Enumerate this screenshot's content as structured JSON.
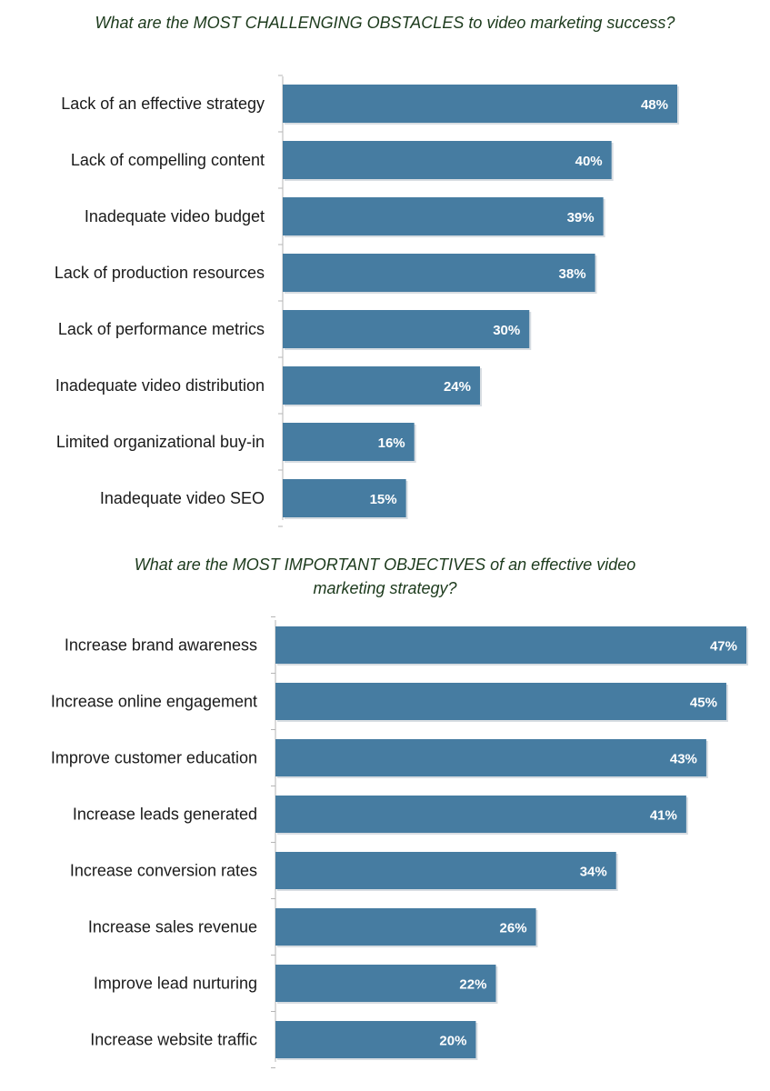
{
  "chart_data": [
    {
      "type": "bar",
      "orientation": "horizontal",
      "title": "What are the MOST CHALLENGING OBSTACLES to video marketing success?",
      "categories": [
        "Lack of an effective strategy",
        "Lack of compelling content",
        "Inadequate video budget",
        "Lack of production resources",
        "Lack of performance metrics",
        "Inadequate video distribution",
        "Limited organizational buy-in",
        "Inadequate video SEO"
      ],
      "values": [
        48,
        40,
        39,
        38,
        30,
        24,
        16,
        15
      ],
      "value_labels": [
        "48%",
        "40%",
        "39%",
        "38%",
        "30%",
        "24%",
        "16%",
        "15%"
      ],
      "unit": "%",
      "xlabel": "",
      "ylabel": "",
      "xlim": [
        0,
        48
      ],
      "grid": false,
      "color": "#467ca1"
    },
    {
      "type": "bar",
      "orientation": "horizontal",
      "title": "What are the MOST IMPORTANT OBJECTIVES of an effective video marketing strategy?",
      "categories": [
        "Increase brand awareness",
        "Increase online engagement",
        "Improve customer education",
        "Increase leads generated",
        "Increase conversion rates",
        "Increase sales revenue",
        "Improve lead nurturing",
        "Increase website traffic"
      ],
      "values": [
        47,
        45,
        43,
        41,
        34,
        26,
        22,
        20
      ],
      "value_labels": [
        "47%",
        "45%",
        "43%",
        "41%",
        "34%",
        "26%",
        "22%",
        "20%"
      ],
      "unit": "%",
      "xlabel": "",
      "ylabel": "",
      "xlim": [
        0,
        47
      ],
      "grid": false,
      "color": "#467ca1"
    }
  ]
}
